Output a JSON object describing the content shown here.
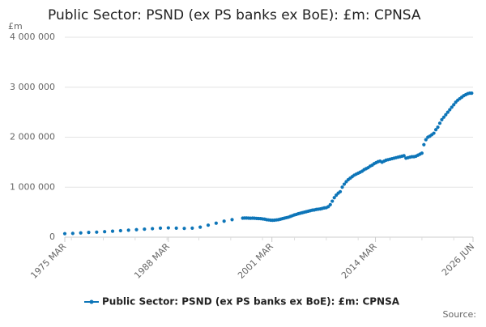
{
  "chart_data": {
    "type": "line",
    "title": "Public Sector: PSND (ex PS banks ex BoE): £m: CPNSA",
    "y_label": "£m",
    "source_label": "Source:",
    "xlim": [
      1975.17,
      2026.42
    ],
    "xticks": [
      {
        "value": 1975.17,
        "label": "1975 MAR"
      },
      {
        "value": 1988.17,
        "label": "1988 MAR"
      },
      {
        "value": 2001.17,
        "label": "2001 MAR"
      },
      {
        "value": 2014.17,
        "label": "2014 MAR"
      },
      {
        "value": 2026.42,
        "label": "2026 JUN"
      }
    ],
    "ylim": [
      0,
      4000000
    ],
    "yticks": [
      0,
      {
        "value": 1000000,
        "label": "1 000 000"
      },
      {
        "value": 2000000,
        "label": "2 000 000"
      },
      {
        "value": 3000000,
        "label": "3 000 000"
      },
      {
        "value": 4000000,
        "label": "4 000 000"
      }
    ],
    "grid": true,
    "series": [
      {
        "name": "Public Sector: PSND (ex PS banks ex BoE): £m: CPNSA",
        "color": "#0d75b8",
        "x": [
          1975.17,
          1976.17,
          1977.17,
          1978.17,
          1979.17,
          1980.17,
          1981.17,
          1982.17,
          1983.17,
          1984.17,
          1985.17,
          1986.17,
          1987.17,
          1988.17,
          1989.17,
          1990.17,
          1991.17,
          1992.17,
          1993.17,
          1994.17,
          1995.17,
          1996.17,
          1997.5,
          1997.75,
          1998,
          1998.25,
          1998.5,
          1998.75,
          1999,
          1999.25,
          1999.5,
          1999.75,
          2000,
          2000.25,
          2000.5,
          2000.75,
          2001,
          2001.25,
          2001.5,
          2001.75,
          2002,
          2002.25,
          2002.5,
          2002.75,
          2003,
          2003.25,
          2003.5,
          2003.75,
          2004,
          2004.25,
          2004.5,
          2004.75,
          2005,
          2005.25,
          2005.5,
          2005.75,
          2006,
          2006.25,
          2006.5,
          2006.75,
          2007,
          2007.25,
          2007.5,
          2007.75,
          2008,
          2008.25,
          2008.5,
          2008.75,
          2009,
          2009.25,
          2009.5,
          2009.75,
          2010,
          2010.25,
          2010.5,
          2010.75,
          2011,
          2011.25,
          2011.5,
          2011.75,
          2012,
          2012.25,
          2012.5,
          2012.75,
          2013,
          2013.25,
          2013.5,
          2013.75,
          2014,
          2014.25,
          2014.5,
          2014.75,
          2015,
          2015.25,
          2015.5,
          2015.75,
          2016,
          2016.25,
          2016.5,
          2016.75,
          2017,
          2017.25,
          2017.5,
          2017.75,
          2018,
          2018.25,
          2018.5,
          2018.75,
          2019,
          2019.25,
          2019.5,
          2019.75,
          2020,
          2020.25,
          2020.5,
          2020.75,
          2021,
          2021.25,
          2021.5,
          2021.75,
          2022,
          2022.25,
          2022.5,
          2022.75,
          2023,
          2023.25,
          2023.5,
          2023.75,
          2024,
          2024.25,
          2024.5,
          2024.75,
          2025,
          2025.25,
          2025.5,
          2025.75,
          2026,
          2026.25
        ],
        "values": [
          70000,
          75000,
          85000,
          95000,
          100000,
          110000,
          120000,
          130000,
          140000,
          150000,
          160000,
          170000,
          180000,
          185000,
          180000,
          175000,
          180000,
          200000,
          240000,
          280000,
          320000,
          350000,
          380000,
          382000,
          383000,
          380000,
          378000,
          380000,
          378000,
          375000,
          372000,
          370000,
          365000,
          360000,
          350000,
          345000,
          340000,
          338000,
          340000,
          345000,
          350000,
          360000,
          370000,
          380000,
          390000,
          400000,
          415000,
          430000,
          445000,
          455000,
          470000,
          480000,
          490000,
          500000,
          510000,
          520000,
          530000,
          540000,
          545000,
          555000,
          560000,
          565000,
          575000,
          585000,
          590000,
          610000,
          650000,
          720000,
          790000,
          840000,
          880000,
          910000,
          1000000,
          1060000,
          1110000,
          1150000,
          1180000,
          1210000,
          1240000,
          1260000,
          1280000,
          1300000,
          1320000,
          1350000,
          1370000,
          1390000,
          1420000,
          1440000,
          1470000,
          1490000,
          1510000,
          1520000,
          1500000,
          1520000,
          1540000,
          1550000,
          1560000,
          1570000,
          1580000,
          1590000,
          1600000,
          1610000,
          1620000,
          1630000,
          1580000,
          1590000,
          1600000,
          1610000,
          1610000,
          1620000,
          1640000,
          1660000,
          1680000,
          1850000,
          1950000,
          2000000,
          2020000,
          2050000,
          2080000,
          2150000,
          2200000,
          2280000,
          2350000,
          2400000,
          2450000,
          2500000,
          2550000,
          2600000,
          2650000,
          2700000,
          2740000,
          2770000,
          2800000,
          2830000,
          2850000,
          2870000,
          2880000,
          2880000
        ]
      }
    ]
  }
}
